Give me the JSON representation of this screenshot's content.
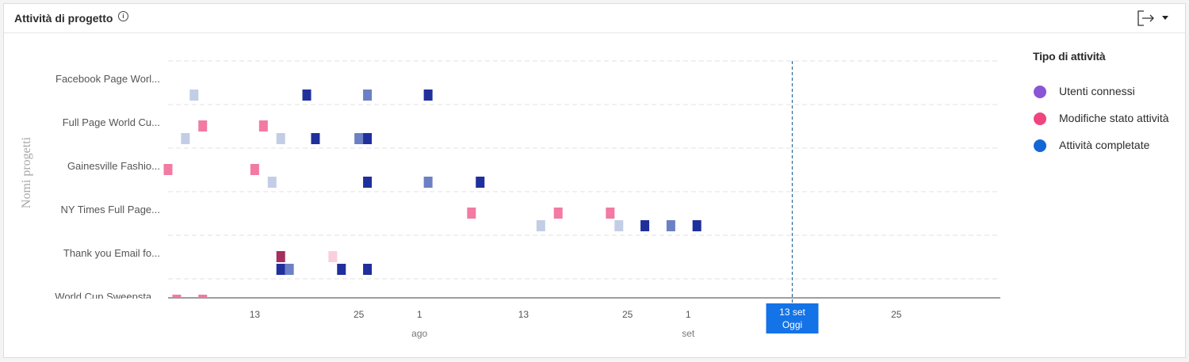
{
  "widget": {
    "title": "Attività di progetto",
    "info_icon": "info-circle-icon",
    "export_icon": "export-arrow-icon",
    "dropdown_icon": "caret-down-icon"
  },
  "legend": {
    "title": "Tipo di attività",
    "items": [
      {
        "label": "Utenti connessi",
        "color": "#8a55d6"
      },
      {
        "label": "Modifiche stato attività",
        "color": "#f0457f"
      },
      {
        "label": "Attività completate",
        "color": "#1366d6"
      }
    ]
  },
  "chart_data": {
    "type": "scatter",
    "ylabel": "Nomi progetti",
    "xlim": [
      "2024-07-03",
      "2024-10-07"
    ],
    "x_ticks": [
      {
        "date": "2024-07-13",
        "label": "13"
      },
      {
        "date": "2024-07-25",
        "label": "25"
      },
      {
        "date": "2024-08-01",
        "label": "1"
      },
      {
        "date": "2024-08-13",
        "label": "13"
      },
      {
        "date": "2024-08-25",
        "label": "25"
      },
      {
        "date": "2024-09-01",
        "label": "1"
      },
      {
        "date": "2024-09-25",
        "label": "25"
      }
    ],
    "month_labels": [
      {
        "date": "2024-08-01",
        "label": "ago"
      },
      {
        "date": "2024-09-01",
        "label": "set"
      }
    ],
    "today": {
      "date": "2024-09-13",
      "date_label": "13 set",
      "label": "Oggi"
    },
    "projects": [
      "Facebook Page Worl...",
      "Full Page World Cu...",
      "Gainesville Fashio...",
      "NY Times Full Page...",
      "Thank you Email fo...",
      "World Cup Sweepsta..."
    ],
    "series": [
      {
        "name": "Modifiche stato attività",
        "points": [
          {
            "project": 1,
            "date": "2024-07-07",
            "color": "#f27aa3"
          },
          {
            "project": 1,
            "date": "2024-07-14",
            "color": "#f27aa3"
          },
          {
            "project": 2,
            "date": "2024-07-03",
            "color": "#f27aa3"
          },
          {
            "project": 2,
            "date": "2024-07-13",
            "color": "#f27aa3"
          },
          {
            "project": 3,
            "date": "2024-08-07",
            "color": "#f27aa3"
          },
          {
            "project": 3,
            "date": "2024-08-17",
            "color": "#f27aa3"
          },
          {
            "project": 3,
            "date": "2024-08-23",
            "color": "#f27aa3"
          },
          {
            "project": 4,
            "date": "2024-07-16",
            "color": "#a52f5e"
          },
          {
            "project": 4,
            "date": "2024-07-22",
            "color": "#f9cfdf"
          },
          {
            "project": 5,
            "date": "2024-07-04",
            "color": "#f27aa3"
          },
          {
            "project": 5,
            "date": "2024-07-07",
            "color": "#f27aa3"
          }
        ]
      },
      {
        "name": "Attività completate",
        "points": [
          {
            "project": 0,
            "date": "2024-07-06",
            "color": "#c3cde6"
          },
          {
            "project": 0,
            "date": "2024-07-19",
            "color": "#1f2f9c"
          },
          {
            "project": 0,
            "date": "2024-07-26",
            "color": "#6c80c4"
          },
          {
            "project": 0,
            "date": "2024-08-02",
            "color": "#1f2f9c"
          },
          {
            "project": 1,
            "date": "2024-07-05",
            "color": "#c3cde6"
          },
          {
            "project": 1,
            "date": "2024-07-16",
            "color": "#c3cde6"
          },
          {
            "project": 1,
            "date": "2024-07-20",
            "color": "#1f2f9c"
          },
          {
            "project": 1,
            "date": "2024-07-25",
            "color": "#6c80c4"
          },
          {
            "project": 1,
            "date": "2024-07-26",
            "color": "#1f2f9c"
          },
          {
            "project": 2,
            "date": "2024-07-15",
            "color": "#c3cde6"
          },
          {
            "project": 2,
            "date": "2024-07-26",
            "color": "#1f2f9c"
          },
          {
            "project": 2,
            "date": "2024-08-02",
            "color": "#6c80c4"
          },
          {
            "project": 2,
            "date": "2024-08-08",
            "color": "#1f2f9c"
          },
          {
            "project": 3,
            "date": "2024-08-15",
            "color": "#c3cde6"
          },
          {
            "project": 3,
            "date": "2024-08-24",
            "color": "#c3cde6"
          },
          {
            "project": 3,
            "date": "2024-08-27",
            "color": "#1f2f9c"
          },
          {
            "project": 3,
            "date": "2024-08-30",
            "color": "#6c80c4"
          },
          {
            "project": 3,
            "date": "2024-09-02",
            "color": "#1f2f9c"
          },
          {
            "project": 4,
            "date": "2024-07-16",
            "color": "#1f2f9c"
          },
          {
            "project": 4,
            "date": "2024-07-17",
            "color": "#6c80c4"
          },
          {
            "project": 4,
            "date": "2024-07-23",
            "color": "#1f2f9c"
          },
          {
            "project": 4,
            "date": "2024-07-26",
            "color": "#1f2f9c"
          }
        ]
      }
    ]
  }
}
